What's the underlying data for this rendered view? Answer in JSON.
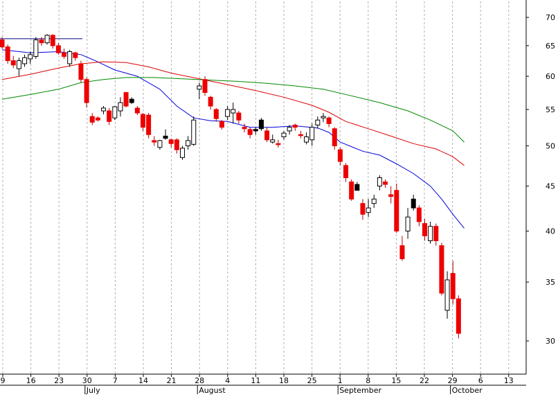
{
  "chart_data": {
    "type": "candlestick",
    "title": "",
    "xlabel": "",
    "ylabel": "",
    "y_scale": "log",
    "ylim": [
      27.5,
      73
    ],
    "grid": "vertical dotted",
    "y_ticks": [
      {
        "value": 70,
        "label": "70"
      },
      {
        "value": 65,
        "label": "65"
      },
      {
        "value": 60,
        "label": "60"
      },
      {
        "value": 55,
        "label": "55"
      },
      {
        "value": 50,
        "label": "50"
      },
      {
        "value": 45,
        "label": "45"
      },
      {
        "value": 40,
        "label": "40"
      },
      {
        "value": 35,
        "label": "35"
      },
      {
        "value": 30,
        "label": "30"
      }
    ],
    "x_week_labels": [
      "9",
      "16",
      "23",
      "30",
      "7",
      "14",
      "21",
      "28",
      "4",
      "11",
      "18",
      "25",
      "1",
      "8",
      "15",
      "22",
      "29",
      "6",
      "13"
    ],
    "x_month_labels": [
      {
        "label": "July",
        "week_index": 3
      },
      {
        "label": "August",
        "week_index": 7
      },
      {
        "label": "September",
        "week_index": 12
      },
      {
        "label": "October",
        "week_index": 16
      }
    ],
    "candles": [
      {
        "o": 66.0,
        "h": 66.5,
        "l": 64.5,
        "c": 64.8,
        "color": "red"
      },
      {
        "o": 64.8,
        "h": 65.2,
        "l": 62.0,
        "c": 62.5,
        "color": "red"
      },
      {
        "o": 62.5,
        "h": 63.3,
        "l": 61.3,
        "c": 61.8,
        "color": "red"
      },
      {
        "o": 61.2,
        "h": 63.0,
        "l": 60.0,
        "c": 62.5,
        "color": "white"
      },
      {
        "o": 62.0,
        "h": 63.5,
        "l": 61.5,
        "c": 63.0,
        "color": "white"
      },
      {
        "o": 62.8,
        "h": 64.0,
        "l": 62.0,
        "c": 63.5,
        "color": "white"
      },
      {
        "o": 63.2,
        "h": 66.5,
        "l": 62.8,
        "c": 66.0,
        "color": "white"
      },
      {
        "o": 65.5,
        "h": 66.5,
        "l": 65.0,
        "c": 66.0,
        "color": "red"
      },
      {
        "o": 65.5,
        "h": 67.0,
        "l": 65.2,
        "c": 66.8,
        "color": "white"
      },
      {
        "o": 66.8,
        "h": 67.0,
        "l": 64.5,
        "c": 65.0,
        "color": "red"
      },
      {
        "o": 65.0,
        "h": 65.5,
        "l": 63.5,
        "c": 63.8,
        "color": "red"
      },
      {
        "o": 63.8,
        "h": 64.5,
        "l": 62.8,
        "c": 63.2,
        "color": "red"
      },
      {
        "o": 62.0,
        "h": 64.3,
        "l": 61.5,
        "c": 64.0,
        "color": "white"
      },
      {
        "o": 63.8,
        "h": 64.0,
        "l": 62.5,
        "c": 63.0,
        "color": "red"
      },
      {
        "o": 62.0,
        "h": 62.5,
        "l": 59.0,
        "c": 59.5,
        "color": "red"
      },
      {
        "o": 59.5,
        "h": 59.8,
        "l": 55.3,
        "c": 56.0,
        "color": "red"
      },
      {
        "o": 54.0,
        "h": 54.5,
        "l": 52.8,
        "c": 53.2,
        "color": "red"
      },
      {
        "o": 53.8,
        "h": 54.0,
        "l": 53.3,
        "c": 53.5,
        "color": "red"
      },
      {
        "o": 54.8,
        "h": 55.5,
        "l": 54.3,
        "c": 55.2,
        "color": "white"
      },
      {
        "o": 54.8,
        "h": 55.2,
        "l": 52.8,
        "c": 53.3,
        "color": "red"
      },
      {
        "o": 53.8,
        "h": 55.5,
        "l": 53.5,
        "c": 55.4,
        "color": "white"
      },
      {
        "o": 54.8,
        "h": 56.8,
        "l": 54.0,
        "c": 56.0,
        "color": "white"
      },
      {
        "o": 57.5,
        "h": 57.6,
        "l": 55.3,
        "c": 55.5,
        "color": "red"
      },
      {
        "o": 56.5,
        "h": 56.8,
        "l": 55.8,
        "c": 56.0,
        "color": "black"
      },
      {
        "o": 55.2,
        "h": 55.5,
        "l": 54.2,
        "c": 54.5,
        "color": "red"
      },
      {
        "o": 54.3,
        "h": 54.5,
        "l": 52.0,
        "c": 52.5,
        "color": "red"
      },
      {
        "o": 54.2,
        "h": 54.5,
        "l": 51.0,
        "c": 51.5,
        "color": "red"
      },
      {
        "o": 50.7,
        "h": 51.3,
        "l": 50.0,
        "c": 50.5,
        "color": "red"
      },
      {
        "o": 49.8,
        "h": 50.8,
        "l": 49.5,
        "c": 50.7,
        "color": "white"
      },
      {
        "o": 51.3,
        "h": 52.2,
        "l": 50.8,
        "c": 51.0,
        "color": "black"
      },
      {
        "o": 50.8,
        "h": 51.0,
        "l": 49.8,
        "c": 50.3,
        "color": "red"
      },
      {
        "o": 50.8,
        "h": 51.0,
        "l": 49.0,
        "c": 49.5,
        "color": "red"
      },
      {
        "o": 48.5,
        "h": 50.0,
        "l": 48.2,
        "c": 49.7,
        "color": "white"
      },
      {
        "o": 50.0,
        "h": 51.3,
        "l": 49.5,
        "c": 50.7,
        "color": "white"
      },
      {
        "o": 50.2,
        "h": 54.0,
        "l": 50.0,
        "c": 53.5,
        "color": "white"
      },
      {
        "o": 58.0,
        "h": 59.0,
        "l": 56.5,
        "c": 58.5,
        "color": "white"
      },
      {
        "o": 59.5,
        "h": 60.0,
        "l": 57.0,
        "c": 57.5,
        "color": "red"
      },
      {
        "o": 56.8,
        "h": 57.0,
        "l": 55.0,
        "c": 55.5,
        "color": "red"
      },
      {
        "o": 55.0,
        "h": 55.2,
        "l": 53.3,
        "c": 53.7,
        "color": "red"
      },
      {
        "o": 53.3,
        "h": 53.5,
        "l": 52.2,
        "c": 52.5,
        "color": "red"
      },
      {
        "o": 54.0,
        "h": 55.5,
        "l": 53.5,
        "c": 55.0,
        "color": "white"
      },
      {
        "o": 54.5,
        "h": 56.0,
        "l": 53.0,
        "c": 55.0,
        "color": "white"
      },
      {
        "o": 54.5,
        "h": 54.8,
        "l": 53.0,
        "c": 53.5,
        "color": "red"
      },
      {
        "o": 52.5,
        "h": 53.0,
        "l": 51.8,
        "c": 52.3,
        "color": "red"
      },
      {
        "o": 52.2,
        "h": 52.5,
        "l": 51.0,
        "c": 51.5,
        "color": "red"
      },
      {
        "o": 52.0,
        "h": 52.5,
        "l": 51.5,
        "c": 52.2,
        "color": "black"
      },
      {
        "o": 53.5,
        "h": 53.8,
        "l": 52.0,
        "c": 52.3,
        "color": "black"
      },
      {
        "o": 52.0,
        "h": 52.5,
        "l": 50.5,
        "c": 50.8,
        "color": "red"
      },
      {
        "o": 50.5,
        "h": 51.5,
        "l": 50.3,
        "c": 50.8,
        "color": "white"
      },
      {
        "o": 50.3,
        "h": 50.8,
        "l": 49.8,
        "c": 50.3,
        "color": "red"
      },
      {
        "o": 51.2,
        "h": 52.0,
        "l": 50.8,
        "c": 51.7,
        "color": "white"
      },
      {
        "o": 52.0,
        "h": 52.8,
        "l": 51.5,
        "c": 52.5,
        "color": "white"
      },
      {
        "o": 52.8,
        "h": 53.0,
        "l": 52.0,
        "c": 52.5,
        "color": "red"
      },
      {
        "o": 51.5,
        "h": 52.0,
        "l": 51.0,
        "c": 51.5,
        "color": "red"
      },
      {
        "o": 50.5,
        "h": 51.8,
        "l": 50.2,
        "c": 51.2,
        "color": "white"
      },
      {
        "o": 50.8,
        "h": 53.0,
        "l": 50.0,
        "c": 52.5,
        "color": "white"
      },
      {
        "o": 52.8,
        "h": 54.0,
        "l": 52.3,
        "c": 53.5,
        "color": "white"
      },
      {
        "o": 53.8,
        "h": 54.5,
        "l": 53.2,
        "c": 54.0,
        "color": "white"
      },
      {
        "o": 53.8,
        "h": 54.0,
        "l": 52.5,
        "c": 53.0,
        "color": "red"
      },
      {
        "o": 52.3,
        "h": 52.5,
        "l": 49.5,
        "c": 50.0,
        "color": "red"
      },
      {
        "o": 49.5,
        "h": 49.8,
        "l": 47.5,
        "c": 48.0,
        "color": "red"
      },
      {
        "o": 47.5,
        "h": 47.8,
        "l": 45.5,
        "c": 46.0,
        "color": "red"
      },
      {
        "o": 45.5,
        "h": 45.8,
        "l": 43.3,
        "c": 43.5,
        "color": "red"
      },
      {
        "o": 45.2,
        "h": 45.5,
        "l": 44.5,
        "c": 44.5,
        "color": "black"
      },
      {
        "o": 43.0,
        "h": 43.5,
        "l": 41.2,
        "c": 41.8,
        "color": "red"
      },
      {
        "o": 42.0,
        "h": 43.5,
        "l": 41.5,
        "c": 42.5,
        "color": "white"
      },
      {
        "o": 43.0,
        "h": 44.0,
        "l": 42.5,
        "c": 43.5,
        "color": "white"
      },
      {
        "o": 45.0,
        "h": 46.3,
        "l": 44.5,
        "c": 46.0,
        "color": "white"
      },
      {
        "o": 45.5,
        "h": 45.8,
        "l": 44.8,
        "c": 45.2,
        "color": "red"
      },
      {
        "o": 44.0,
        "h": 45.0,
        "l": 43.0,
        "c": 43.8,
        "color": "red"
      },
      {
        "o": 44.5,
        "h": 45.3,
        "l": 39.8,
        "c": 40.0,
        "color": "red"
      },
      {
        "o": 38.5,
        "h": 39.5,
        "l": 37.0,
        "c": 37.2,
        "color": "red"
      },
      {
        "o": 40.0,
        "h": 42.5,
        "l": 39.2,
        "c": 41.5,
        "color": "white"
      },
      {
        "o": 43.5,
        "h": 44.0,
        "l": 42.2,
        "c": 42.5,
        "color": "black"
      },
      {
        "o": 42.5,
        "h": 42.8,
        "l": 40.5,
        "c": 41.0,
        "color": "red"
      },
      {
        "o": 40.8,
        "h": 41.3,
        "l": 39.0,
        "c": 39.5,
        "color": "red"
      },
      {
        "o": 39.0,
        "h": 41.0,
        "l": 38.7,
        "c": 40.5,
        "color": "white"
      },
      {
        "o": 40.5,
        "h": 40.8,
        "l": 38.5,
        "c": 39.0,
        "color": "red"
      },
      {
        "o": 38.5,
        "h": 38.8,
        "l": 33.8,
        "c": 34.0,
        "color": "red"
      },
      {
        "o": 32.5,
        "h": 36.0,
        "l": 31.8,
        "c": 35.2,
        "color": "white"
      },
      {
        "o": 35.8,
        "h": 37.0,
        "l": 33.0,
        "c": 33.5,
        "color": "red"
      },
      {
        "o": 33.5,
        "h": 33.8,
        "l": 30.2,
        "c": 30.6,
        "color": "red"
      }
    ],
    "series": [
      {
        "kind": "ma",
        "color": "#0000dd",
        "values": [
          {
            "i": 0,
            "v": 64.3
          },
          {
            "i": 5,
            "v": 63.8
          },
          {
            "i": 10,
            "v": 64.0
          },
          {
            "i": 14,
            "v": 63.5
          },
          {
            "i": 17,
            "v": 62.3
          },
          {
            "i": 20,
            "v": 61.0
          },
          {
            "i": 24,
            "v": 60.0
          },
          {
            "i": 28,
            "v": 58.0
          },
          {
            "i": 31,
            "v": 55.5
          },
          {
            "i": 34,
            "v": 53.8
          },
          {
            "i": 37,
            "v": 53.4
          },
          {
            "i": 40,
            "v": 53.3
          },
          {
            "i": 44,
            "v": 52.5
          },
          {
            "i": 48,
            "v": 52.5
          },
          {
            "i": 52,
            "v": 52.7
          },
          {
            "i": 56,
            "v": 52.4
          },
          {
            "i": 58,
            "v": 51.8
          },
          {
            "i": 60,
            "v": 50.5
          },
          {
            "i": 64,
            "v": 49.3
          },
          {
            "i": 67,
            "v": 48.8
          },
          {
            "i": 70,
            "v": 47.7
          },
          {
            "i": 73,
            "v": 46.5
          },
          {
            "i": 76,
            "v": 45.0
          },
          {
            "i": 78,
            "v": 43.5
          },
          {
            "i": 80,
            "v": 41.8
          },
          {
            "i": 82,
            "v": 40.3
          }
        ]
      },
      {
        "kind": "ma",
        "color": "#dd0000",
        "values": [
          {
            "i": 0,
            "v": 59.5
          },
          {
            "i": 5,
            "v": 60.3
          },
          {
            "i": 10,
            "v": 61.3
          },
          {
            "i": 14,
            "v": 62.0
          },
          {
            "i": 18,
            "v": 62.3
          },
          {
            "i": 22,
            "v": 62.2
          },
          {
            "i": 26,
            "v": 61.5
          },
          {
            "i": 30,
            "v": 60.5
          },
          {
            "i": 35,
            "v": 59.6
          },
          {
            "i": 40,
            "v": 58.7
          },
          {
            "i": 45,
            "v": 57.8
          },
          {
            "i": 50,
            "v": 56.8
          },
          {
            "i": 55,
            "v": 55.6
          },
          {
            "i": 58,
            "v": 54.6
          },
          {
            "i": 61,
            "v": 53.3
          },
          {
            "i": 65,
            "v": 52.3
          },
          {
            "i": 69,
            "v": 51.3
          },
          {
            "i": 73,
            "v": 50.3
          },
          {
            "i": 77,
            "v": 49.6
          },
          {
            "i": 80,
            "v": 48.6
          },
          {
            "i": 82,
            "v": 47.5
          }
        ]
      },
      {
        "kind": "ma",
        "color": "#008800",
        "values": [
          {
            "i": 0,
            "v": 56.5
          },
          {
            "i": 5,
            "v": 57.2
          },
          {
            "i": 10,
            "v": 58.0
          },
          {
            "i": 14,
            "v": 59.0
          },
          {
            "i": 18,
            "v": 59.5
          },
          {
            "i": 22,
            "v": 59.8
          },
          {
            "i": 27,
            "v": 59.8
          },
          {
            "i": 32,
            "v": 59.6
          },
          {
            "i": 37,
            "v": 59.4
          },
          {
            "i": 42,
            "v": 59.2
          },
          {
            "i": 47,
            "v": 58.9
          },
          {
            "i": 52,
            "v": 58.5
          },
          {
            "i": 57,
            "v": 58.0
          },
          {
            "i": 62,
            "v": 57.0
          },
          {
            "i": 67,
            "v": 56.0
          },
          {
            "i": 72,
            "v": 54.8
          },
          {
            "i": 76,
            "v": 53.5
          },
          {
            "i": 80,
            "v": 52.0
          },
          {
            "i": 82,
            "v": 50.5
          }
        ]
      },
      {
        "kind": "hline",
        "color": "#000080",
        "value": 66.2,
        "from_i": 0,
        "to_i": 14
      }
    ]
  }
}
